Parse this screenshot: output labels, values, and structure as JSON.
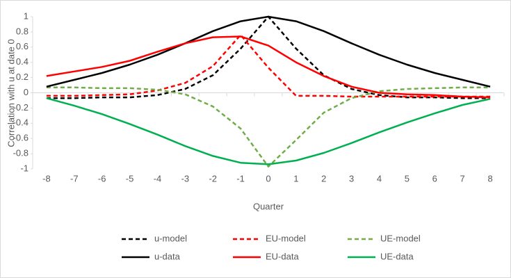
{
  "chart_data": {
    "type": "line",
    "x_label": "Quarter",
    "y_label": "Correlation with u at date 0",
    "categories": [
      "-8",
      "-7",
      "-6",
      "-5",
      "-4",
      "-3",
      "-2",
      "-1",
      "0",
      "1",
      "2",
      "3",
      "4",
      "5",
      "6",
      "7",
      "8"
    ],
    "ylim": [
      -1,
      1
    ],
    "yticks": [
      1,
      0.8,
      0.6,
      0.4,
      0.2,
      0,
      -0.2,
      -0.4,
      -0.6,
      -0.8,
      -1
    ],
    "legend": "bottom",
    "series": [
      {
        "name": "u-model",
        "color": "#000000",
        "dashed": true,
        "values": [
          -0.07,
          -0.07,
          -0.06,
          -0.06,
          -0.03,
          0.05,
          0.23,
          0.58,
          1.0,
          0.58,
          0.23,
          0.05,
          -0.03,
          -0.06,
          -0.06,
          -0.07,
          -0.07
        ]
      },
      {
        "name": "EU-model",
        "color": "#ff0000",
        "dashed": true,
        "values": [
          -0.04,
          -0.04,
          -0.03,
          -0.02,
          0.03,
          0.13,
          0.35,
          0.76,
          0.33,
          -0.04,
          -0.04,
          -0.05,
          -0.05,
          -0.05,
          -0.05,
          -0.05,
          -0.05
        ]
      },
      {
        "name": "UE-model",
        "color": "#70ad47",
        "dashed": true,
        "values": [
          0.07,
          0.07,
          0.06,
          0.06,
          0.04,
          -0.02,
          -0.18,
          -0.47,
          -0.97,
          -0.62,
          -0.26,
          -0.07,
          0.02,
          0.05,
          0.06,
          0.07,
          0.07
        ]
      },
      {
        "name": "u-data",
        "color": "#000000",
        "dashed": false,
        "values": [
          0.08,
          0.17,
          0.26,
          0.37,
          0.5,
          0.65,
          0.81,
          0.94,
          1.0,
          0.94,
          0.81,
          0.65,
          0.5,
          0.37,
          0.26,
          0.17,
          0.08
        ]
      },
      {
        "name": "EU-data",
        "color": "#ff0000",
        "dashed": false,
        "values": [
          0.22,
          0.28,
          0.34,
          0.42,
          0.54,
          0.65,
          0.73,
          0.74,
          0.62,
          0.4,
          0.22,
          0.08,
          0.0,
          -0.02,
          -0.03,
          -0.05,
          -0.06
        ]
      },
      {
        "name": "UE-data",
        "color": "#00b050",
        "dashed": false,
        "values": [
          -0.07,
          -0.17,
          -0.28,
          -0.41,
          -0.55,
          -0.7,
          -0.83,
          -0.92,
          -0.94,
          -0.89,
          -0.79,
          -0.66,
          -0.52,
          -0.39,
          -0.27,
          -0.16,
          -0.08
        ]
      }
    ]
  }
}
